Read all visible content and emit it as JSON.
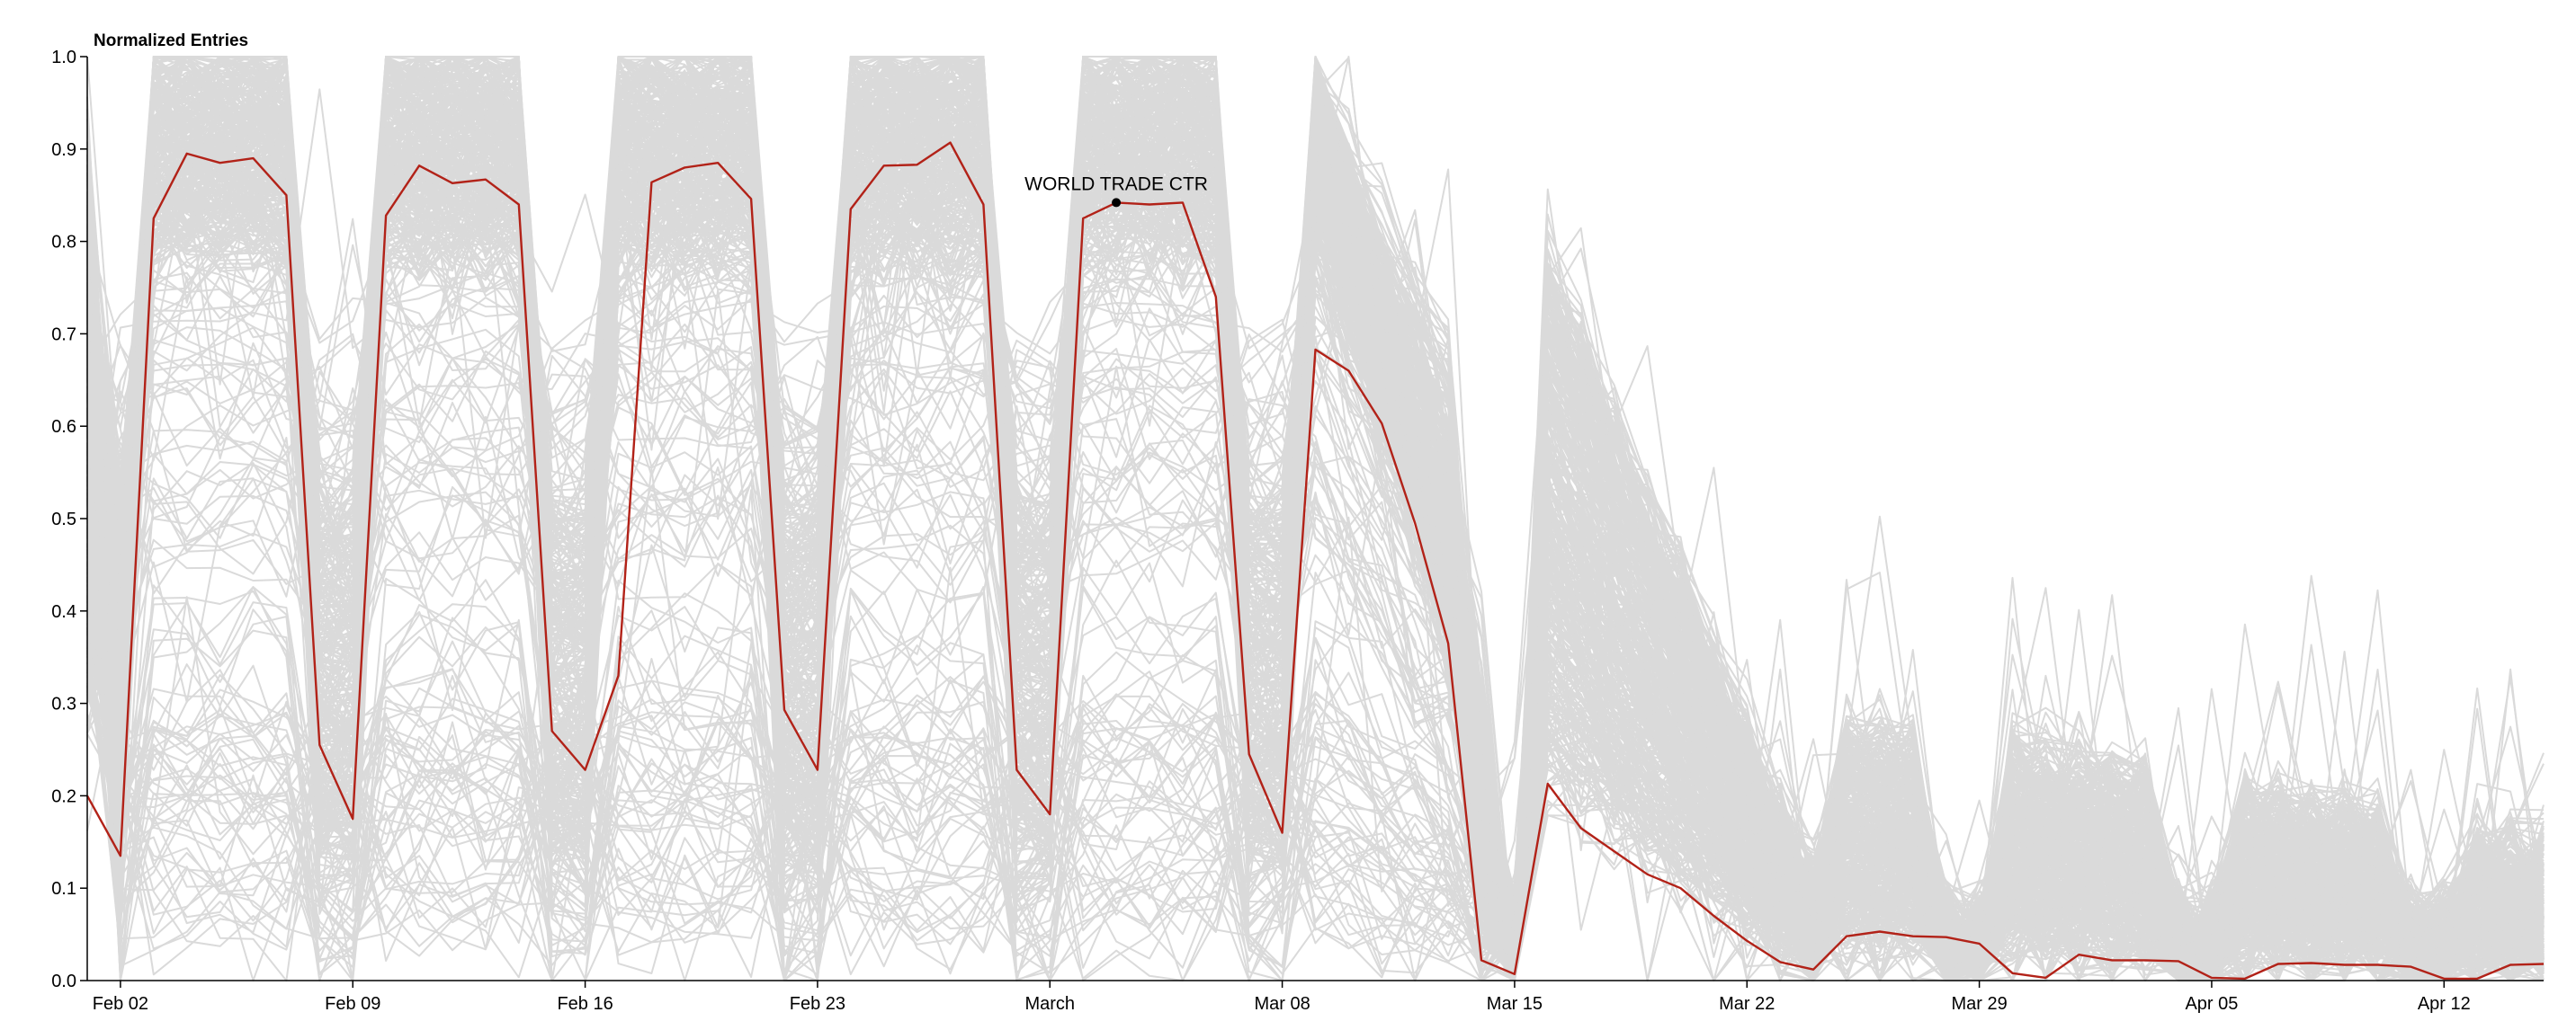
{
  "chart_data": {
    "type": "line",
    "title": "",
    "ylabel": "Normalized Entries",
    "xlabel": "",
    "ylim": [
      0,
      1
    ],
    "y_ticks": [
      "0.0",
      "0.1",
      "0.2",
      "0.3",
      "0.4",
      "0.5",
      "0.6",
      "0.7",
      "0.8",
      "0.9",
      "1.0"
    ],
    "x_ticks": [
      {
        "label": "Feb 02",
        "date": "2020-02-02"
      },
      {
        "label": "Feb 09",
        "date": "2020-02-09"
      },
      {
        "label": "Feb 16",
        "date": "2020-02-16"
      },
      {
        "label": "Feb 23",
        "date": "2020-02-23"
      },
      {
        "label": "March",
        "date": "2020-03-01"
      },
      {
        "label": "Mar 08",
        "date": "2020-03-08"
      },
      {
        "label": "Mar 15",
        "date": "2020-03-15"
      },
      {
        "label": "Mar 22",
        "date": "2020-03-22"
      },
      {
        "label": "Mar 29",
        "date": "2020-03-29"
      },
      {
        "label": "Apr 05",
        "date": "2020-04-05"
      },
      {
        "label": "Apr 12",
        "date": "2020-04-12"
      }
    ],
    "x_range": [
      "2020-02-01",
      "2020-04-15"
    ],
    "grid": false,
    "colors": {
      "background_series": "#dadada",
      "highlight": "#b22218",
      "marker": "#000000",
      "axis": "#000000"
    },
    "highlight": {
      "name": "WORLD TRADE CTR",
      "marker_date": "2020-03-03",
      "marker_value": 0.842,
      "dates": [
        "2020-02-01",
        "2020-02-02",
        "2020-02-03",
        "2020-02-04",
        "2020-02-05",
        "2020-02-06",
        "2020-02-07",
        "2020-02-08",
        "2020-02-09",
        "2020-02-10",
        "2020-02-11",
        "2020-02-12",
        "2020-02-13",
        "2020-02-14",
        "2020-02-15",
        "2020-02-16",
        "2020-02-17",
        "2020-02-18",
        "2020-02-19",
        "2020-02-20",
        "2020-02-21",
        "2020-02-22",
        "2020-02-23",
        "2020-02-24",
        "2020-02-25",
        "2020-02-26",
        "2020-02-27",
        "2020-02-28",
        "2020-02-29",
        "2020-03-01",
        "2020-03-02",
        "2020-03-03",
        "2020-03-04",
        "2020-03-05",
        "2020-03-06",
        "2020-03-07",
        "2020-03-08",
        "2020-03-09",
        "2020-03-10",
        "2020-03-11",
        "2020-03-12",
        "2020-03-13",
        "2020-03-14",
        "2020-03-15",
        "2020-03-16",
        "2020-03-17",
        "2020-03-18",
        "2020-03-19",
        "2020-03-20",
        "2020-03-21",
        "2020-03-22",
        "2020-03-23",
        "2020-03-24",
        "2020-03-25",
        "2020-03-26",
        "2020-03-27",
        "2020-03-28",
        "2020-03-29",
        "2020-03-30",
        "2020-03-31",
        "2020-04-01",
        "2020-04-02",
        "2020-04-03",
        "2020-04-04",
        "2020-04-05",
        "2020-04-06",
        "2020-04-07",
        "2020-04-08",
        "2020-04-09",
        "2020-04-10",
        "2020-04-11",
        "2020-04-12",
        "2020-04-13",
        "2020-04-14",
        "2020-04-15"
      ],
      "values": [
        0.2,
        0.135,
        0.825,
        0.895,
        0.885,
        0.89,
        0.85,
        0.255,
        0.175,
        0.828,
        0.882,
        0.863,
        0.867,
        0.84,
        0.27,
        0.228,
        0.33,
        0.864,
        0.88,
        0.885,
        0.846,
        0.293,
        0.228,
        0.835,
        0.882,
        0.883,
        0.907,
        0.84,
        0.228,
        0.18,
        0.825,
        0.842,
        0.84,
        0.842,
        0.74,
        0.245,
        0.16,
        0.683,
        0.66,
        0.603,
        0.495,
        0.365,
        0.022,
        0.007,
        0.213,
        0.165,
        0.14,
        0.115,
        0.1,
        0.07,
        0.043,
        0.02,
        0.012,
        0.048,
        0.053,
        0.048,
        0.047,
        0.04,
        0.008,
        0.003,
        0.028,
        0.022,
        0.022,
        0.021,
        0.003,
        0.002,
        0.018,
        0.019,
        0.017,
        0.017,
        0.015,
        0.002,
        0.002,
        0.017,
        0.018
      ]
    },
    "background_series_count": 420
  }
}
